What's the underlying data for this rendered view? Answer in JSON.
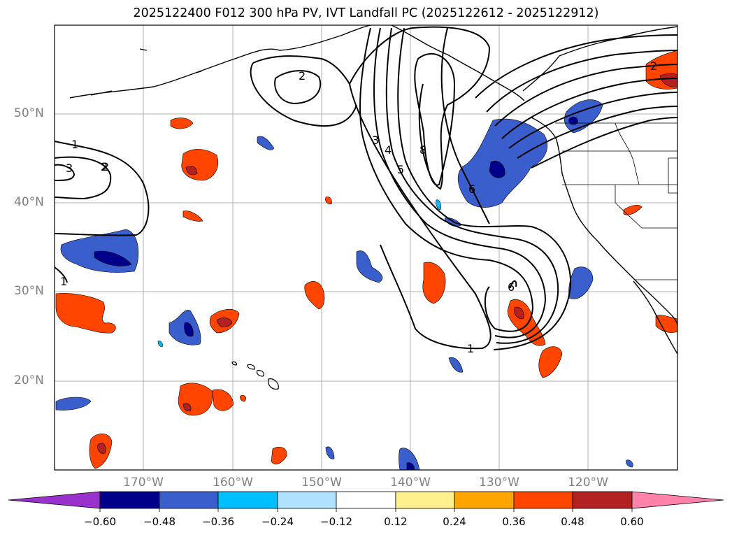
{
  "title": "2025122400 F012 300 hPa PV, IVT Landfall PC (2025122612 - 2025122912)",
  "map": {
    "lat_labels": [
      "50°N",
      "40°N",
      "30°N",
      "20°N"
    ],
    "lon_labels": [
      "170°W",
      "160°W",
      "150°W",
      "140°W",
      "130°W",
      "120°W"
    ],
    "contour_labels": [
      "1",
      "2",
      "3",
      "2",
      "2",
      "3",
      "4",
      "5",
      "6",
      "8",
      "6",
      "1",
      "2",
      "1"
    ],
    "negative_shades": [
      "#9932cc",
      "#00008b",
      "#3a5fcd",
      "#00bfff",
      "#b0e2ff"
    ],
    "positive_shades": [
      "#fff08f",
      "#ffa500",
      "#ff4500",
      "#b22222",
      "#ff82ab"
    ]
  },
  "colorbar": {
    "ticks": [
      "−0.60",
      "−0.48",
      "−0.36",
      "−0.24",
      "−0.12",
      "0.12",
      "0.24",
      "0.36",
      "0.48",
      "0.60"
    ],
    "colors": [
      "#9932cc",
      "#00008b",
      "#3a5fcd",
      "#00bfff",
      "#b0e2ff",
      "#ffffff",
      "#fff08f",
      "#ffa500",
      "#ff4500",
      "#b22222",
      "#ff82ab"
    ]
  }
}
